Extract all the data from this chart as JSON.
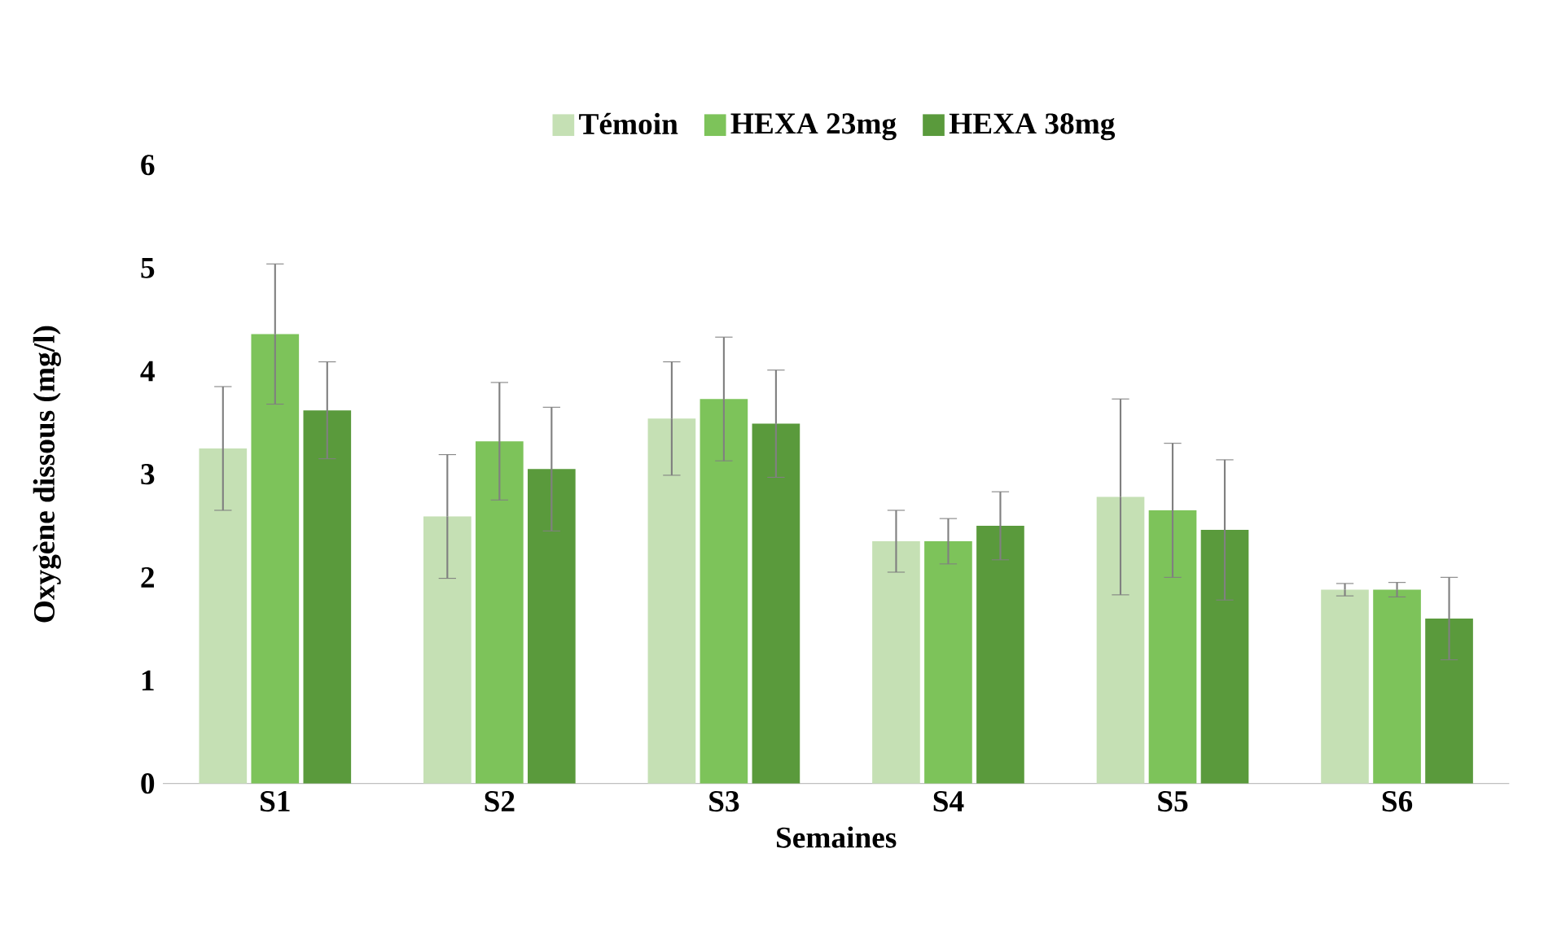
{
  "chart_data": {
    "type": "bar",
    "xlabel": "Semaines",
    "ylabel": "Oxygène dissous (mg/l)",
    "categories": [
      "S1",
      "S2",
      "S3",
      "S4",
      "S5",
      "S6"
    ],
    "series": [
      {
        "name": "Témoin",
        "color": "#c5e0b4",
        "values": [
          3.25,
          2.59,
          3.54,
          2.35,
          2.78,
          1.88
        ],
        "errors": [
          0.6,
          0.6,
          0.55,
          0.3,
          0.95,
          0.06
        ]
      },
      {
        "name": "HEXA 23mg",
        "color": "#7dc35a",
        "values": [
          4.36,
          3.32,
          3.73,
          2.35,
          2.65,
          1.88
        ],
        "errors": [
          0.68,
          0.57,
          0.6,
          0.22,
          0.65,
          0.07
        ]
      },
      {
        "name": "HEXA 38mg",
        "color": "#5a9a3c",
        "values": [
          3.62,
          3.05,
          3.49,
          2.5,
          2.46,
          1.6
        ],
        "errors": [
          0.47,
          0.6,
          0.52,
          0.33,
          0.68,
          0.4
        ]
      }
    ],
    "ylim": [
      0,
      6
    ],
    "yticks": [
      0,
      1,
      2,
      3,
      4,
      5,
      6
    ],
    "grid": false,
    "legend": "top"
  }
}
